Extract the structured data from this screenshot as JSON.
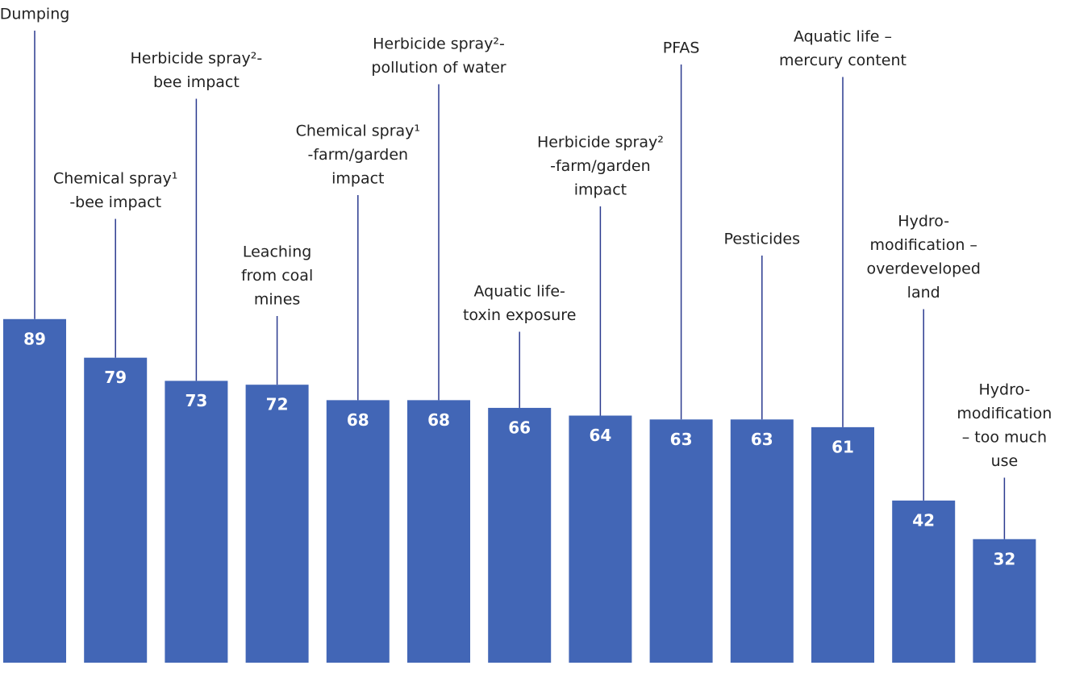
{
  "chart_data": {
    "type": "bar",
    "categories": [
      [
        "Dumping"
      ],
      [
        "Chemical spray¹",
        "-bee impact"
      ],
      [
        "Herbicide spray²-",
        "bee impact"
      ],
      [
        "Leaching",
        "from coal",
        "mines"
      ],
      [
        "Chemical spray¹",
        "-farm/garden",
        "impact"
      ],
      [
        "Herbicide spray²-",
        "pollution of water"
      ],
      [
        "Aquatic life-",
        "toxin exposure"
      ],
      [
        "Herbicide spray²",
        "-farm/garden",
        "impact"
      ],
      [
        "PFAS"
      ],
      [
        "Pesticides"
      ],
      [
        "Aquatic life –",
        "mercury content"
      ],
      [
        "Hydro-",
        "modification –",
        "overdeveloped",
        "land"
      ],
      [
        "Hydro-",
        "modification",
        "– too much",
        "use"
      ]
    ],
    "values": [
      89,
      79,
      73,
      72,
      68,
      68,
      66,
      64,
      63,
      63,
      61,
      42,
      32
    ],
    "color": "#4266b6",
    "ylim": [
      0,
      90
    ]
  }
}
